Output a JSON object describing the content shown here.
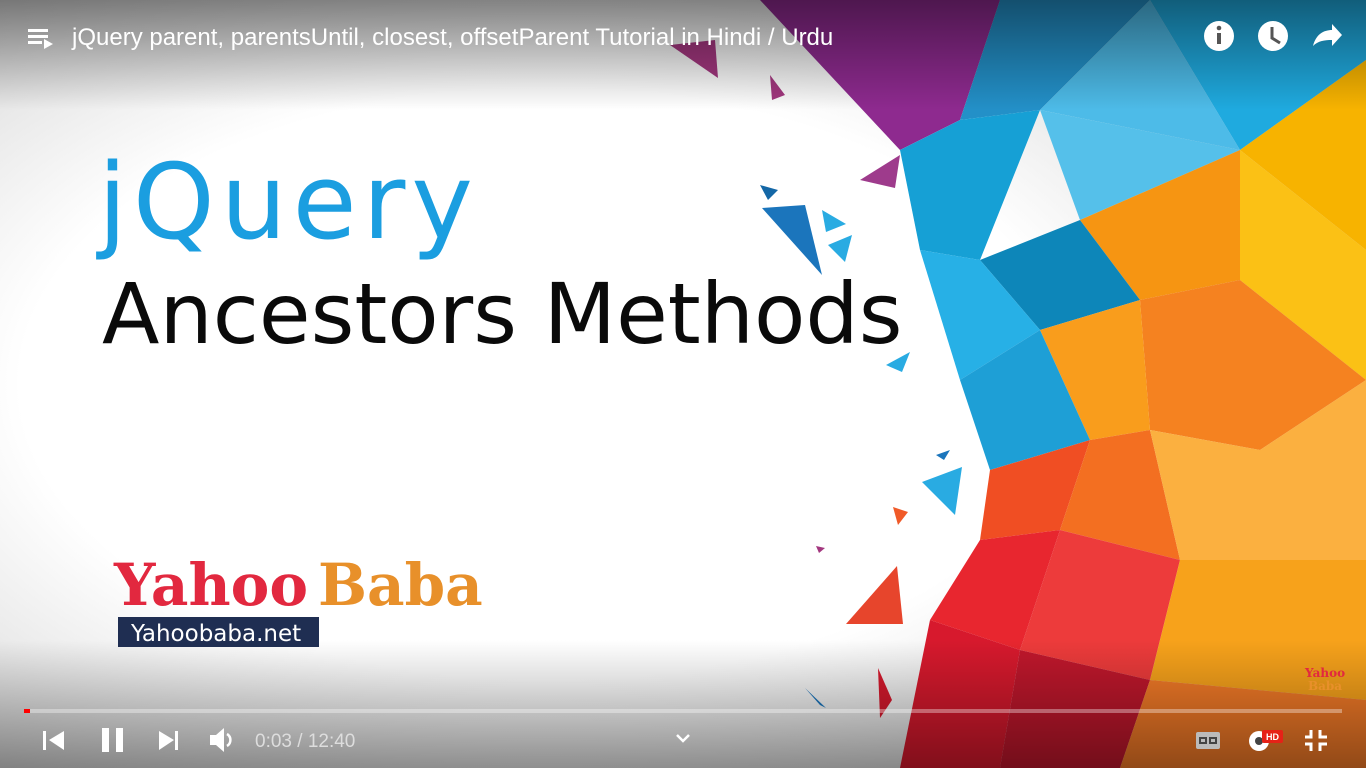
{
  "header": {
    "title": "jQuery parent, parentsUntil, closest, offsetParent Tutorial in Hindi / Urdu"
  },
  "slide": {
    "heading": "jQuery",
    "subheading": "Ancestors Methods",
    "logo": {
      "part1": "Yahoo",
      "part2": "Baba",
      "website": "Yahoobaba.net"
    },
    "watermark": {
      "part1": "Yahoo",
      "part2": "Baba"
    }
  },
  "controls": {
    "time": "0:03 / 12:40",
    "quality_badge": "HD"
  }
}
